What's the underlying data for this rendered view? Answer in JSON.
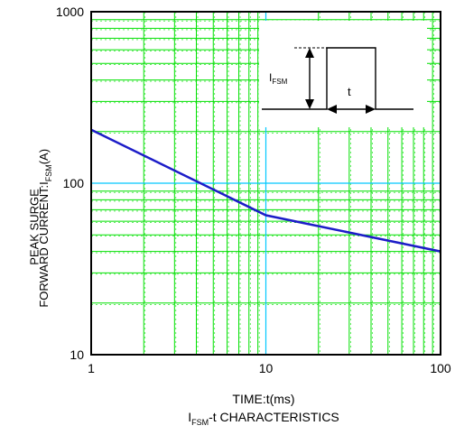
{
  "chart_data": {
    "type": "line",
    "title": "",
    "xlabel": "TIME:t(ms)",
    "subtitle": {
      "prefix": "I",
      "sub": "FSM",
      "suffix": "-t CHARACTERISTICS"
    },
    "ylabel": {
      "line1": "PEAK SURGE",
      "line2_prefix": "FORWARD CURRENT:I",
      "line2_sub": "FSM",
      "line2_suffix": "(A)"
    },
    "x_scale": "log",
    "y_scale": "log",
    "xlim": [
      1,
      100
    ],
    "ylim": [
      10,
      1000
    ],
    "x_ticks": [
      "1",
      "10",
      "100"
    ],
    "y_ticks": [
      "10",
      "100",
      "1000"
    ],
    "grid": true,
    "colors": {
      "line": "#1c1cc8",
      "major_grid": "#00c8ff",
      "minor_grid": "#00e000",
      "frame": "#000000"
    },
    "series": [
      {
        "x": [
          1,
          10,
          100
        ],
        "y": [
          205,
          65,
          40
        ]
      }
    ],
    "inset": {
      "label_prefix": "I",
      "label_sub": "FSM",
      "t_label": "t"
    }
  }
}
